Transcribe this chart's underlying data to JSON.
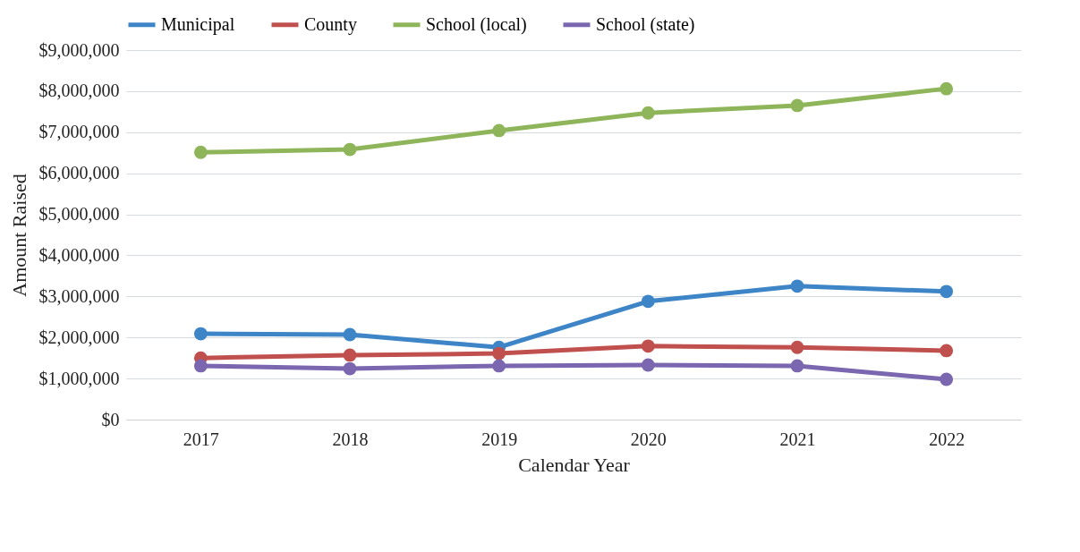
{
  "chart_data": {
    "type": "line",
    "xlabel": "Calendar Year",
    "ylabel": "Amount Raised",
    "categories": [
      "2017",
      "2018",
      "2019",
      "2020",
      "2021",
      "2022"
    ],
    "series": [
      {
        "name": "Municipal",
        "color": "#3d85c6",
        "values": [
          2090000,
          2070000,
          1760000,
          2880000,
          3250000,
          3120000
        ]
      },
      {
        "name": "County",
        "color": "#c0504d",
        "values": [
          1500000,
          1570000,
          1610000,
          1790000,
          1760000,
          1680000
        ]
      },
      {
        "name": "School (local)",
        "color": "#8fb55a",
        "values": [
          6510000,
          6580000,
          7040000,
          7470000,
          7650000,
          8060000
        ]
      },
      {
        "name": "School (state)",
        "color": "#7a67b0",
        "values": [
          1310000,
          1240000,
          1310000,
          1330000,
          1310000,
          980000
        ]
      }
    ],
    "ylim": [
      0,
      9000000
    ],
    "yticks": [
      {
        "value": 0,
        "label": "$0"
      },
      {
        "value": 1000000,
        "label": "$1,000,000"
      },
      {
        "value": 2000000,
        "label": "$2,000,000"
      },
      {
        "value": 3000000,
        "label": "$3,000,000"
      },
      {
        "value": 4000000,
        "label": "$4,000,000"
      },
      {
        "value": 5000000,
        "label": "$5,000,000"
      },
      {
        "value": 6000000,
        "label": "$6,000,000"
      },
      {
        "value": 7000000,
        "label": "$7,000,000"
      },
      {
        "value": 8000000,
        "label": "$8,000,000"
      },
      {
        "value": 9000000,
        "label": "$9,000,000"
      }
    ],
    "grid": "y",
    "legend": "top",
    "marker": "circle",
    "line_style": "solid"
  }
}
